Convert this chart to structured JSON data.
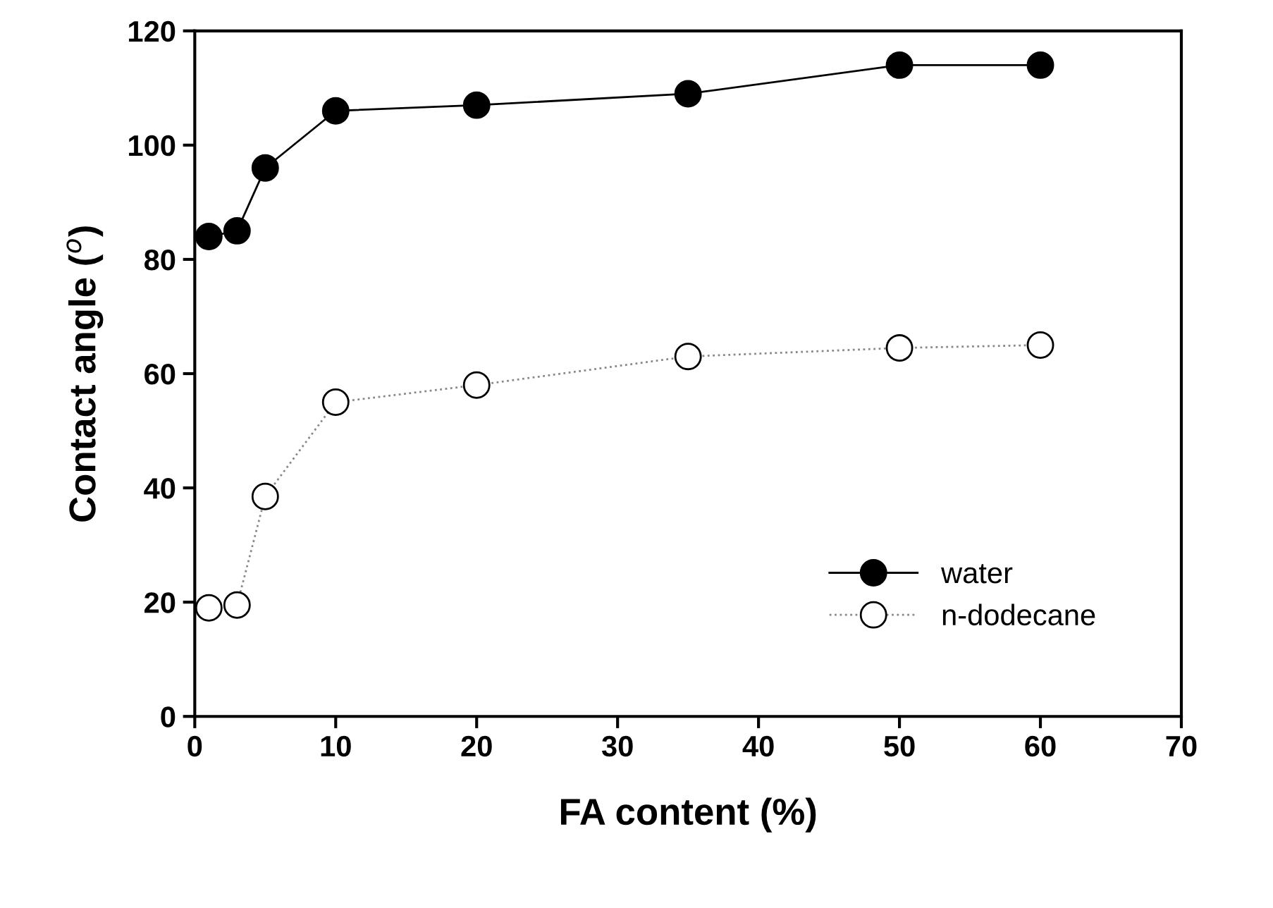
{
  "chart_data": {
    "type": "line",
    "xlabel": "FA content (%)",
    "ylabel": "Contact angle ($^{o}$)",
    "x": [
      1,
      3,
      5,
      10,
      20,
      35,
      50,
      60
    ],
    "series": [
      {
        "name": "water",
        "color": "#000000",
        "line_style": "solid",
        "values": [
          84,
          85,
          96,
          106,
          107,
          109,
          114,
          114
        ]
      },
      {
        "name": "n-dodecane",
        "color": "#ffffff",
        "line_style": "dotted",
        "values": [
          19,
          19.5,
          38.5,
          55,
          58,
          63,
          64.5,
          65
        ]
      }
    ],
    "xlim": [
      0,
      70
    ],
    "xticks": [
      0,
      10,
      20,
      30,
      40,
      50,
      60,
      70
    ],
    "ylim": [
      0,
      120
    ],
    "yticks": [
      0,
      20,
      40,
      60,
      80,
      100,
      120
    ],
    "marker": "circle",
    "grid": false,
    "legend": "bottom right"
  }
}
